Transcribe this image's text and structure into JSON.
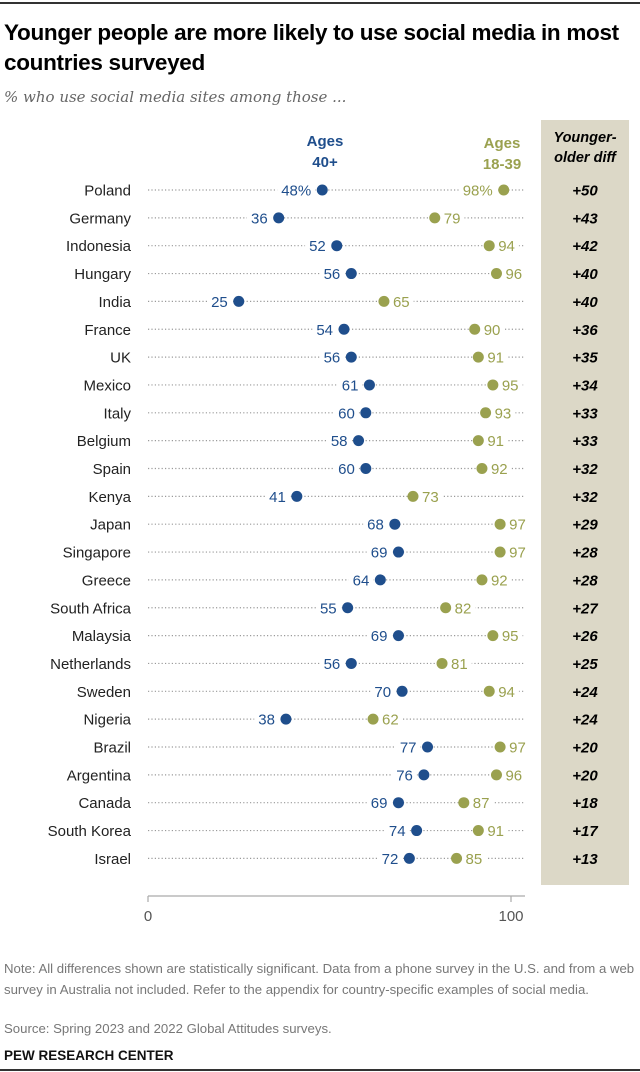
{
  "header": {
    "title": "Younger people are more likely to use social media in most countries surveyed",
    "subtitle": "% who use social media sites among those ..."
  },
  "legend": {
    "older_line1": "Ages",
    "older_line2": "40+",
    "younger_line1": "Ages",
    "younger_line2": "18-39",
    "diff_line1": "Younger-",
    "diff_line2": "older diff"
  },
  "colors": {
    "older": "#1f4e8c",
    "younger": "#9aa14f",
    "diff_panel": "#dcd8c7"
  },
  "chart_data": {
    "type": "dot-plot",
    "title": "Younger people are more likely to use social media in most countries surveyed",
    "subtitle": "% who use social media sites among those ...",
    "xlim": [
      0,
      100
    ],
    "x_ticks": [
      0,
      100
    ],
    "x_tick_labels": [
      "0",
      "100"
    ],
    "categories": [
      "Poland",
      "Germany",
      "Indonesia",
      "Hungary",
      "India",
      "France",
      "UK",
      "Mexico",
      "Italy",
      "Belgium",
      "Spain",
      "Kenya",
      "Japan",
      "Singapore",
      "Greece",
      "South Africa",
      "Malaysia",
      "Netherlands",
      "Sweden",
      "Nigeria",
      "Brazil",
      "Argentina",
      "Canada",
      "South Korea",
      "Israel"
    ],
    "series": [
      {
        "name": "Ages 40+",
        "values": [
          48,
          36,
          52,
          56,
          25,
          54,
          56,
          61,
          60,
          58,
          60,
          41,
          68,
          69,
          64,
          55,
          69,
          56,
          70,
          38,
          77,
          76,
          69,
          74,
          72
        ]
      },
      {
        "name": "Ages 18-39",
        "values": [
          98,
          79,
          94,
          96,
          65,
          90,
          91,
          95,
          93,
          91,
          92,
          73,
          97,
          97,
          92,
          82,
          95,
          81,
          94,
          62,
          97,
          96,
          87,
          91,
          85
        ]
      }
    ],
    "diff_column": {
      "label": "Younger-older diff",
      "values": [
        "+50",
        "+43",
        "+42",
        "+40",
        "+40",
        "+36",
        "+35",
        "+34",
        "+33",
        "+33",
        "+32",
        "+32",
        "+29",
        "+28",
        "+28",
        "+27",
        "+26",
        "+25",
        "+24",
        "+24",
        "+20",
        "+20",
        "+18",
        "+17",
        "+13"
      ]
    },
    "first_row_suffix": "%",
    "grid": false
  },
  "footer": {
    "note": "Note: All differences shown are statistically significant. Data from a phone survey in the U.S. and from a web survey in Australia not included. Refer to the appendix for country-specific examples of social media.",
    "source": "Source: Spring 2023 and 2022 Global Attitudes surveys.",
    "brand": "PEW RESEARCH CENTER"
  }
}
